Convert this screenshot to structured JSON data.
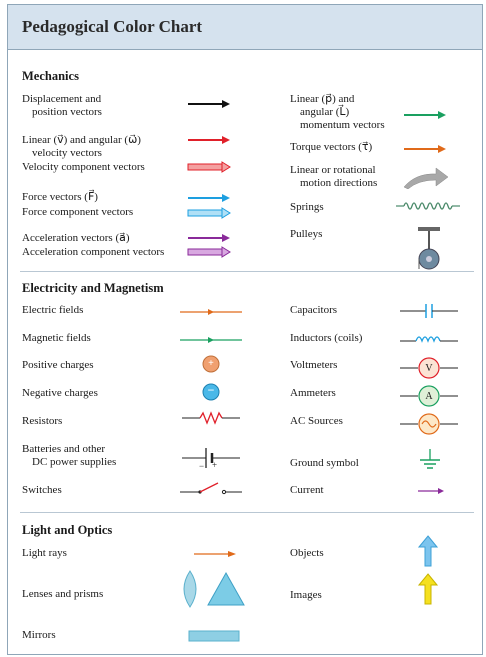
{
  "title": "Pedagogical Color Chart",
  "sections": {
    "mechanics": "Mechanics",
    "em": "Electricity and Magnetism",
    "optics": "Light and Optics"
  },
  "mechanics": {
    "displacement": [
      "Displacement and",
      "position vectors"
    ],
    "velocity": [
      "Linear (v⃗) and angular (ω⃗)",
      "velocity vectors"
    ],
    "velocity_component": "Velocity component vectors",
    "force": "Force vectors (F⃗)",
    "force_component": "Force component vectors",
    "acceleration": "Acceleration vectors (a⃗)",
    "acceleration_component": "Acceleration component vectors",
    "momentum": [
      "Linear (p⃗) and",
      "angular (L⃗)",
      "momentum vectors"
    ],
    "torque": "Torque vectors (τ⃗)",
    "motion": [
      "Linear or rotational",
      "motion directions"
    ],
    "springs": "Springs",
    "pulleys": "Pulleys"
  },
  "em": {
    "electric_fields": "Electric fields",
    "magnetic_fields": "Magnetic fields",
    "positive_charges": "Positive charges",
    "negative_charges": "Negative charges",
    "resistors": "Resistors",
    "batteries": [
      "Batteries and other",
      "DC power supplies"
    ],
    "switches": "Switches",
    "capacitors": "Capacitors",
    "inductors": "Inductors (coils)",
    "voltmeters": "Voltmeters",
    "ammeters": "Ammeters",
    "ac_sources": "AC Sources",
    "ground": "Ground symbol",
    "current": "Current",
    "plus": "+",
    "minus": "−",
    "voltmeter_letter": "V",
    "ammeter_letter": "A",
    "battery_minus": "−",
    "battery_plus": "+"
  },
  "optics": {
    "light_rays": "Light rays",
    "lenses": "Lenses and prisms",
    "mirrors": "Mirrors",
    "objects": "Objects",
    "images": "Images"
  },
  "colors": {
    "header_bg": "#d5e2ee",
    "black_vector": "#111111",
    "red_vector": "#e0202a",
    "green_vector": "#1aa060",
    "orange_vector": "#e06a1a",
    "blue_vector": "#1d9fe0",
    "purple_vector": "#8a2a9a",
    "positive_charge": "#f0a070",
    "negative_charge": "#4ab8e8",
    "lens": "#a8d8e8",
    "object_arrow": "#7cc4ee",
    "image_arrow": "#f5e020"
  }
}
